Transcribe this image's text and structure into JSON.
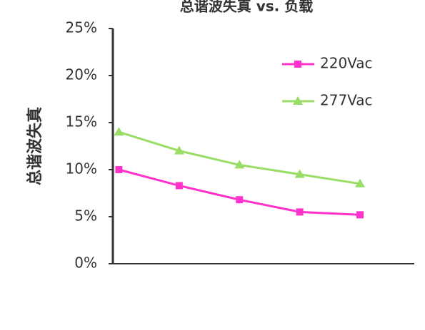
{
  "chart_data": {
    "type": "line",
    "title": "总谐波失真 vs. 负载",
    "y_label": "总谐波失真",
    "categories": [
      null,
      null,
      null,
      null,
      null
    ],
    "series": [
      {
        "name": "220Vac",
        "color": "#ff33cc",
        "marker": "square",
        "values": [
          10,
          8.3,
          6.8,
          5.5,
          5.2
        ]
      },
      {
        "name": "277Vac",
        "color": "#99dd66",
        "marker": "triangle",
        "values": [
          14,
          12,
          10.5,
          9.5,
          8.5
        ]
      }
    ],
    "ylim": [
      0,
      25
    ],
    "yticks": [
      {
        "value": 0,
        "label": "0%"
      },
      {
        "value": 5,
        "label": "5%"
      },
      {
        "value": 10,
        "label": "10%"
      },
      {
        "value": 15,
        "label": "15%"
      },
      {
        "value": 20,
        "label": "20%"
      },
      {
        "value": 25,
        "label": "25%"
      }
    ],
    "legend": "upper right"
  }
}
